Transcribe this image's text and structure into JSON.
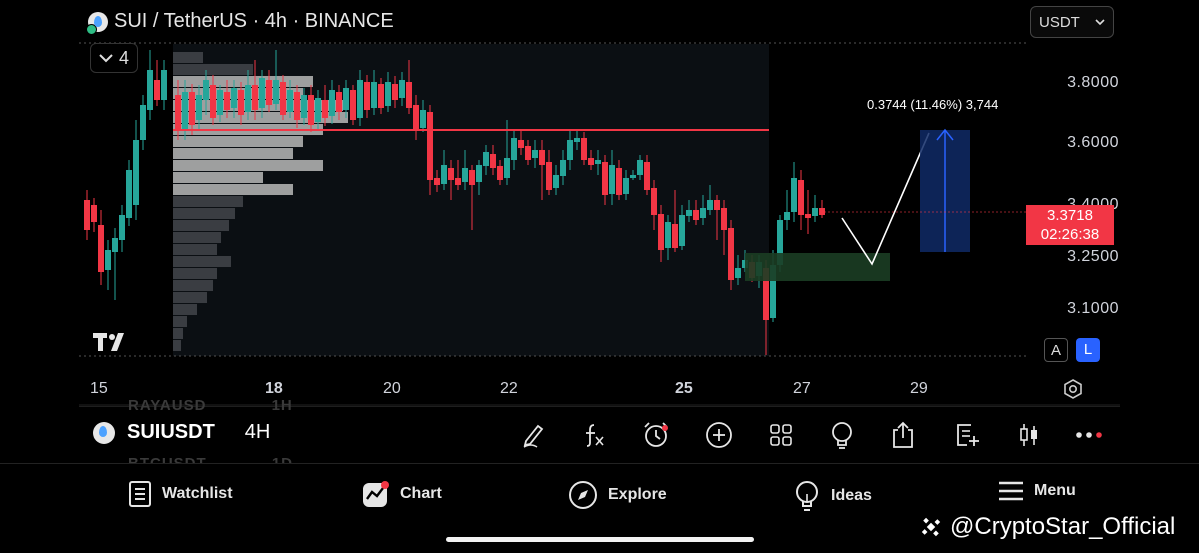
{
  "header": {
    "symbol_title": "SUI / TetherUS · 4h · BINANCE",
    "indicator_count": "4",
    "currency": "USDT"
  },
  "price_axis": [
    "3.8000",
    "3.6000",
    "3.4000",
    "3.2500",
    "3.1000"
  ],
  "current_price": {
    "price": "3.3718",
    "countdown": "02:26:38"
  },
  "measure": {
    "label": "0.3744 (11.46%) 3,744"
  },
  "date_axis": [
    {
      "label": "15",
      "bold": false
    },
    {
      "label": "18",
      "bold": true
    },
    {
      "label": "20",
      "bold": false
    },
    {
      "label": "22",
      "bold": false
    },
    {
      "label": "25",
      "bold": true
    },
    {
      "label": "27",
      "bold": false
    },
    {
      "label": "29",
      "bold": false
    }
  ],
  "chart_buttons": {
    "auto": "A",
    "log": "L"
  },
  "symbol_bar": {
    "symbol": "SUIUSDT",
    "interval": "4H",
    "ghost_above": "RAYAUSD",
    "ghost_above_tf": "1H",
    "ghost_below": "BTCUSDT",
    "ghost_below_tf": "1D"
  },
  "toolbar_icons": [
    "pencil-icon",
    "function-icon",
    "alert-clock-icon",
    "add-icon",
    "grid-icon",
    "lightbulb-icon",
    "share-icon",
    "notes-add-icon",
    "candles-icon",
    "more-icon"
  ],
  "tabs": [
    {
      "label": "Watchlist",
      "icon": "watchlist-icon"
    },
    {
      "label": "Chart",
      "icon": "chart-icon"
    },
    {
      "label": "Explore",
      "icon": "compass-icon"
    },
    {
      "label": "Ideas",
      "icon": "lightbulb-icon"
    },
    {
      "label": "Menu",
      "icon": "menu-icon"
    }
  ],
  "watermark": "@CryptoStar_Official",
  "colors": {
    "up": "#26a69a",
    "down": "#f23645",
    "accent": "#2962ff",
    "resistance": "#f23645"
  }
}
